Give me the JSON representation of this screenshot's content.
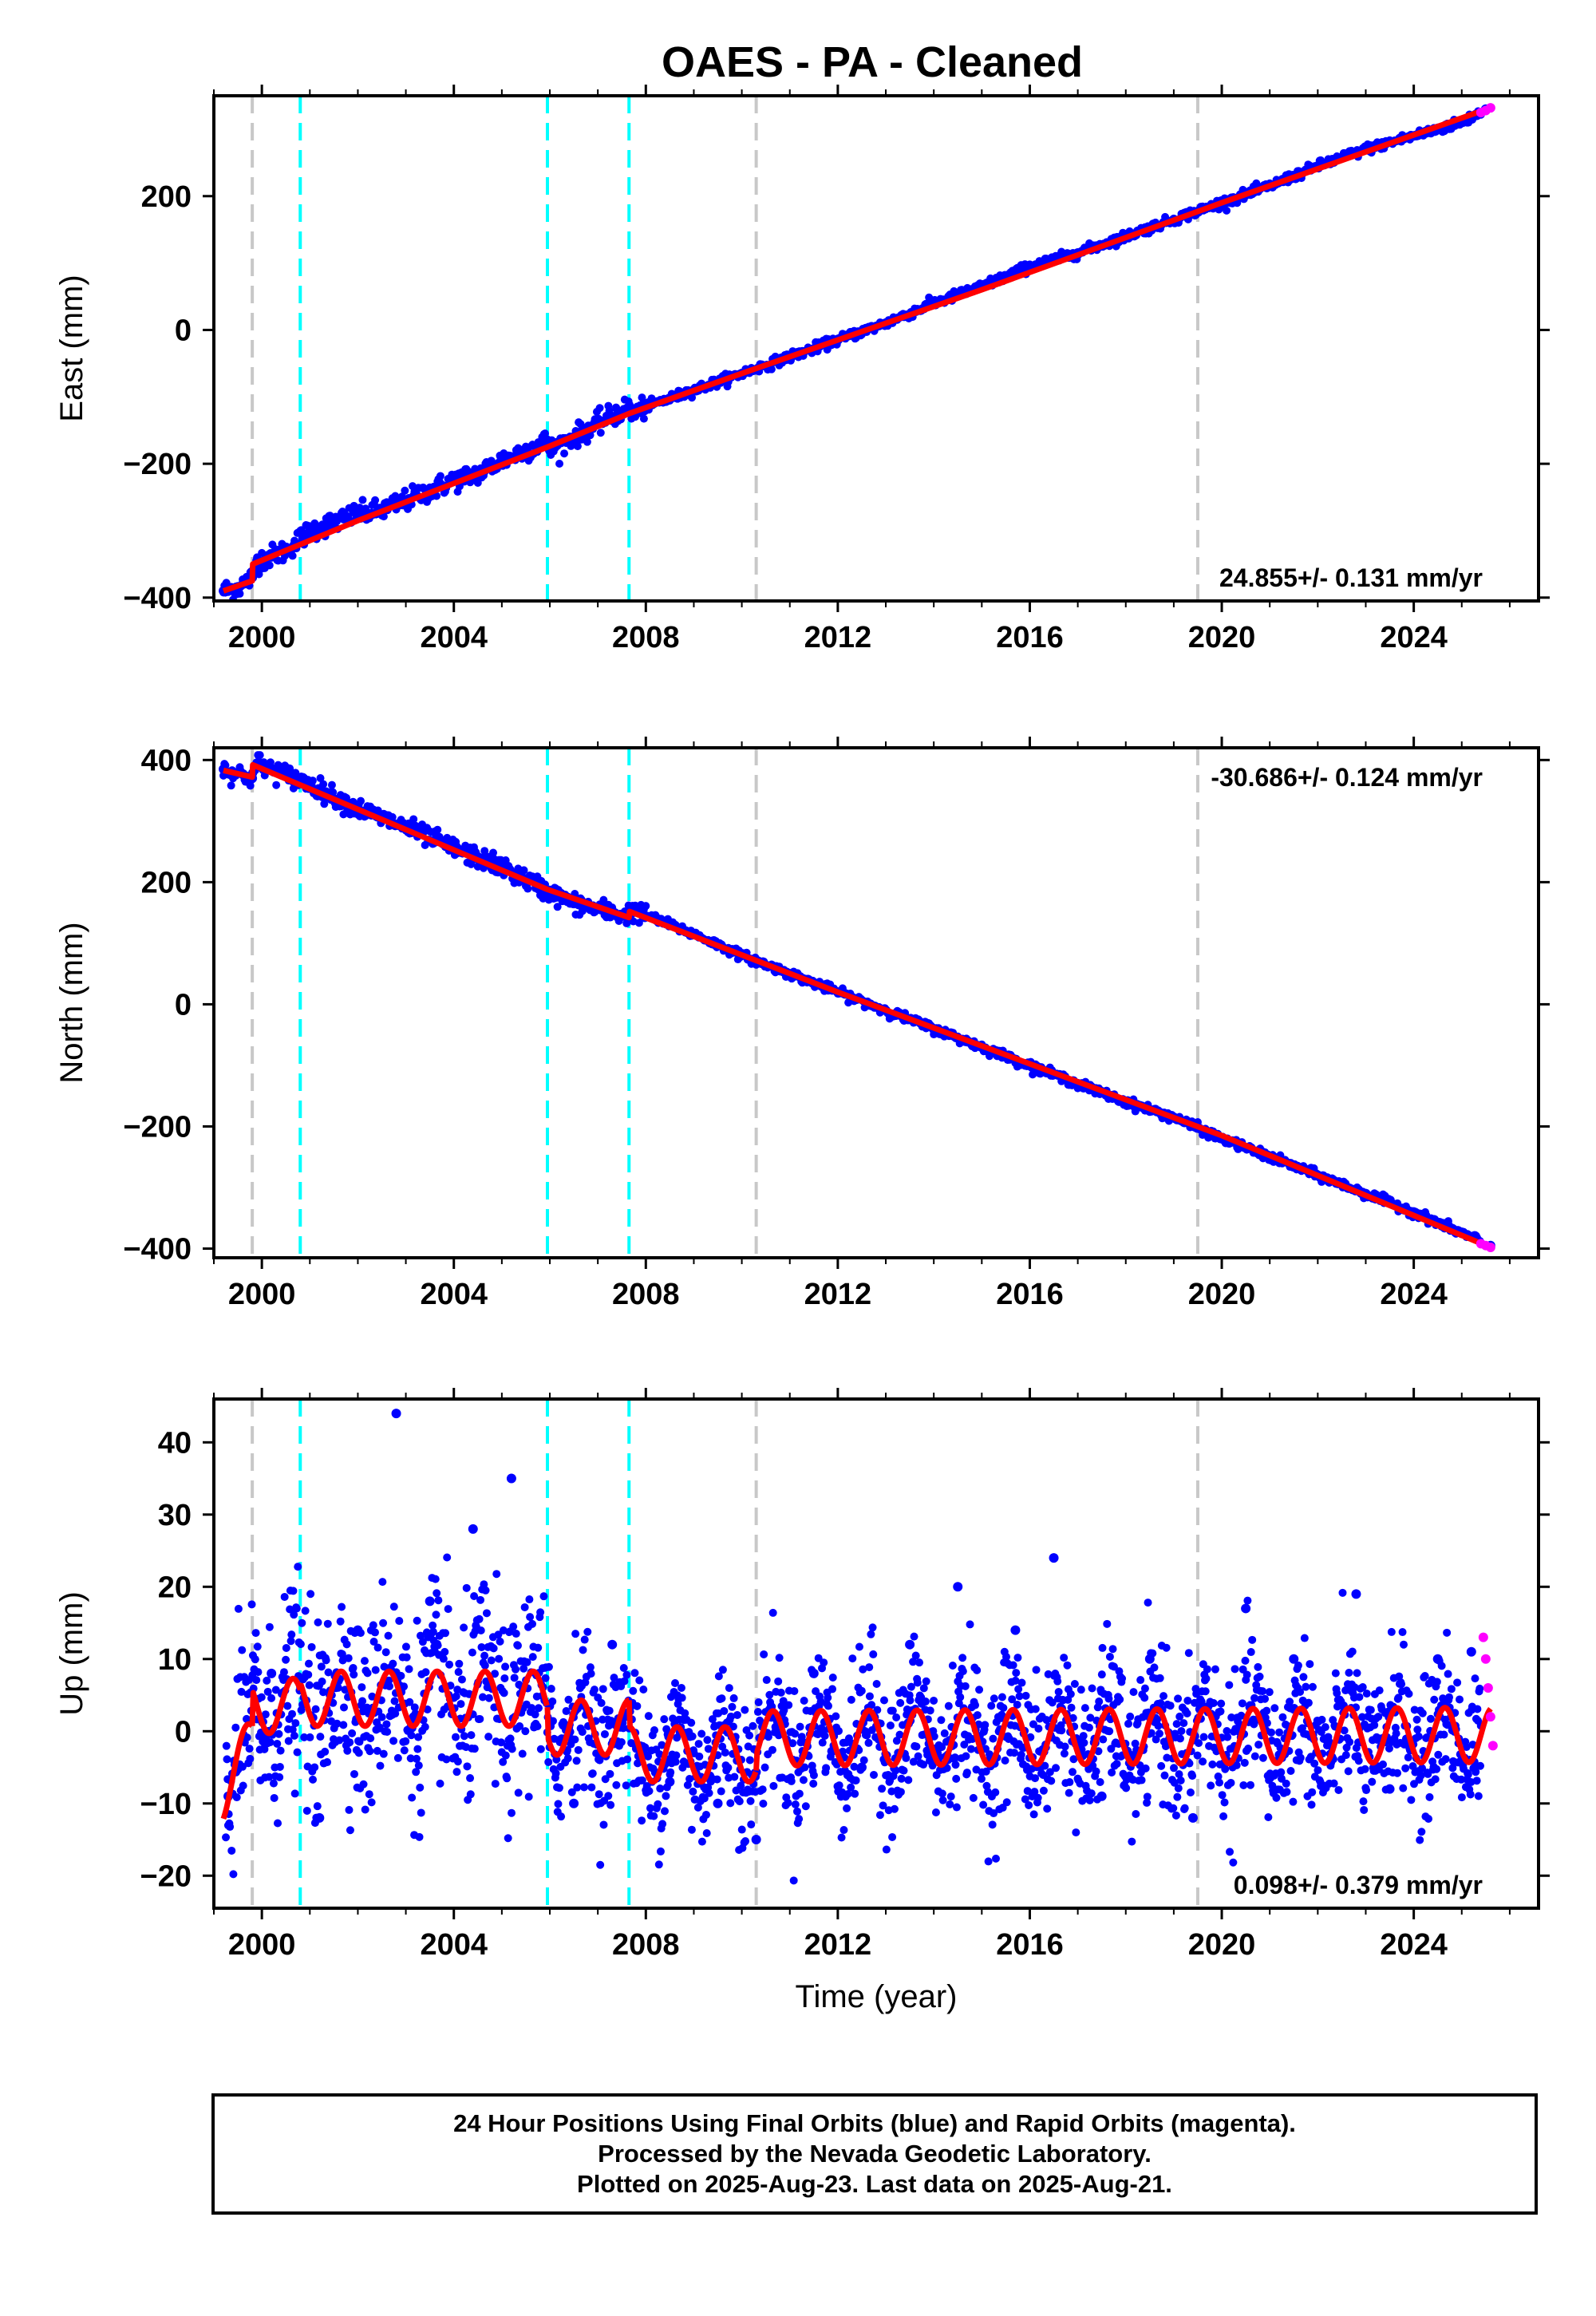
{
  "page": {
    "title": "OAES  - PA - Cleaned"
  },
  "colors": {
    "final_orbits": "#0000ff",
    "rapid_orbits": "#ff00ff",
    "model_fit": "#ff0000",
    "event_gray": "#c8c8c8",
    "event_cyan": "#00ffff"
  },
  "chart_data": [
    {
      "type": "scatter",
      "name": "east",
      "ylabel": "East (mm)",
      "xlabel": "",
      "xlim": [
        1999.0,
        2026.6
      ],
      "ylim": [
        -405,
        350
      ],
      "xticks": [
        "2000",
        "2004",
        "2008",
        "2012",
        "2016",
        "2020",
        "2024"
      ],
      "yticks": [
        "200",
        "0",
        "−200",
        "−400"
      ],
      "rate_label": "24.855+/- 0.131 mm/yr",
      "rate_position": "bottom-right",
      "event_lines_gray": [
        1999.8,
        2010.3,
        2019.5
      ],
      "event_lines_cyan": [
        2000.8,
        2005.95,
        2007.65
      ],
      "series": [
        {
          "name": "Final Orbits",
          "color": "#0000ff",
          "x": [
            1999.2,
            1999.5,
            1999.8,
            1999.9,
            2000.5,
            2001,
            2002,
            2002.5,
            2003,
            2003.5,
            2004,
            2004.5,
            2005,
            2005.5,
            2005.95,
            2006,
            2006.5,
            2007,
            2007.65,
            2007.7,
            2008,
            2009,
            2010,
            2011,
            2012,
            2013,
            2014,
            2015,
            2016,
            2017,
            2018,
            2019,
            2020,
            2021,
            2022,
            2023,
            2024,
            2025,
            2025.5
          ],
          "y": [
            -390,
            -385,
            -370,
            -345,
            -330,
            -300,
            -275,
            -270,
            -255,
            -240,
            -225,
            -215,
            -195,
            -180,
            -165,
            -180,
            -160,
            -140,
            -115,
            -125,
            -115,
            -90,
            -65,
            -40,
            -15,
            10,
            40,
            65,
            95,
            115,
            140,
            165,
            190,
            215,
            245,
            270,
            290,
            310,
            330
          ]
        },
        {
          "name": "Rapid Orbits",
          "color": "#ff00ff",
          "x": [
            2025.4,
            2025.5,
            2025.6
          ],
          "y": [
            325,
            328,
            332
          ]
        }
      ],
      "model": {
        "color": "#ff0000",
        "x": [
          1999.2,
          1999.8,
          1999.81,
          2002,
          2005.95,
          2007.65,
          2010,
          2015,
          2020,
          2025.6
        ],
        "y": [
          -390,
          -375,
          -350,
          -285,
          -175,
          -125,
          -65,
          60,
          190,
          332
        ]
      }
    },
    {
      "type": "scatter",
      "name": "north",
      "ylabel": "North (mm)",
      "xlabel": "",
      "xlim": [
        1999.0,
        2026.6
      ],
      "ylim": [
        -415,
        420
      ],
      "xticks": [
        "2000",
        "2004",
        "2008",
        "2012",
        "2016",
        "2020",
        "2024"
      ],
      "yticks": [
        "400",
        "200",
        "0",
        "−200",
        "−400"
      ],
      "rate_label": "-30.686+/- 0.124 mm/yr",
      "rate_position": "top-right",
      "event_lines_gray": [
        1999.8,
        2010.3,
        2019.5
      ],
      "event_lines_cyan": [
        2000.8,
        2005.95,
        2007.65
      ],
      "series": [
        {
          "name": "Final Orbits",
          "color": "#0000ff",
          "x": [
            1999.2,
            1999.8,
            1999.9,
            2001,
            2002,
            2003,
            2004,
            2005,
            2005.95,
            2006.5,
            2007.6,
            2007.7,
            2009,
            2010,
            2011,
            2012,
            2013,
            2014,
            2015,
            2016,
            2017,
            2018,
            2019,
            2020,
            2021,
            2022,
            2023,
            2024,
            2025,
            2025.6
          ],
          "y": [
            385,
            370,
            395,
            360,
            320,
            290,
            255,
            225,
            185,
            165,
            145,
            155,
            115,
            80,
            50,
            20,
            -10,
            -40,
            -70,
            -100,
            -130,
            -160,
            -185,
            -220,
            -250,
            -280,
            -310,
            -340,
            -375,
            -395
          ]
        },
        {
          "name": "Rapid Orbits",
          "color": "#ff00ff",
          "x": [
            2025.4,
            2025.5,
            2025.6
          ],
          "y": [
            -392,
            -395,
            -398
          ]
        }
      ],
      "model": {
        "color": "#ff0000",
        "x": [
          1999.2,
          1999.8,
          1999.81,
          2005.95,
          2007.65,
          2007.66,
          2012,
          2020,
          2025.6
        ],
        "y": [
          383,
          372,
          392,
          188,
          142,
          152,
          20,
          -215,
          -398
        ]
      }
    },
    {
      "type": "scatter",
      "name": "up",
      "ylabel": "Up (mm)",
      "xlabel": "Time (year)",
      "xlim": [
        1999.0,
        2026.6
      ],
      "ylim": [
        -24.5,
        46
      ],
      "xticks": [
        "2000",
        "2004",
        "2008",
        "2012",
        "2016",
        "2020",
        "2024"
      ],
      "yticks": [
        "40",
        "30",
        "20",
        "10",
        "0",
        "−10",
        "−20"
      ],
      "rate_label": "0.098+/- 0.379 mm/yr",
      "rate_position": "bottom-right",
      "event_lines_gray": [
        1999.8,
        2010.3,
        2019.5
      ],
      "event_lines_cyan": [
        2000.8,
        2005.95,
        2007.65
      ],
      "series": [
        {
          "name": "Final Orbits",
          "color": "#0000ff",
          "x": [
            1999.3,
            2000.2,
            2001.2,
            2002.0,
            2002.8,
            2003.5,
            2004.4,
            2005.2,
            2006.5,
            2007.3,
            2008.5,
            2009.5,
            2010.3,
            2011.5,
            2012.5,
            2013.5,
            2014.5,
            2015.7,
            2016.5,
            2017.5,
            2018.5,
            2019.4,
            2020.5,
            2021.5,
            2022.8,
            2023.5,
            2024.5,
            2025.2
          ],
          "y": [
            -9,
            8,
            -12,
            14,
            44,
            18,
            28,
            35,
            -10,
            12,
            -7,
            -10,
            -15,
            8,
            -5,
            12,
            20,
            14,
            24,
            -9,
            10,
            -12,
            17,
            10,
            19,
            -8,
            10,
            11
          ]
        },
        {
          "name": "Rapid Orbits",
          "color": "#ff00ff",
          "x": [
            2025.45,
            2025.5,
            2025.55,
            2025.6,
            2025.65
          ],
          "y": [
            13,
            10,
            6,
            2,
            -2
          ]
        }
      ],
      "model": {
        "color": "#ff0000",
        "annual_amplitude": 3.8,
        "segments": [
          {
            "x_start": 1999.2,
            "x_end": 1999.8,
            "start_value": -8.5,
            "end_value": -1.5
          },
          {
            "x_start": 1999.8,
            "x_end": 2000.8,
            "start_value": 3.5,
            "end_value": 3.5
          },
          {
            "x_start": 2000.8,
            "x_end": 2005.95,
            "start_value": 4.5,
            "end_value": 4.5
          },
          {
            "x_start": 2005.95,
            "x_end": 2007.65,
            "start_value": 0.5,
            "end_value": 0.5
          },
          {
            "x_start": 2007.65,
            "x_end": 2010.3,
            "start_value": -3.2,
            "end_value": -3.2
          },
          {
            "x_start": 2010.3,
            "x_end": 2025.6,
            "start_value": -1.0,
            "end_value": -0.5
          }
        ]
      }
    }
  ],
  "footer": {
    "line1": "24 Hour Positions Using Final Orbits (blue) and Rapid Orbits (magenta).",
    "line2": "Processed by the Nevada Geodetic Laboratory.",
    "line3": "Plotted on 2025-Aug-23. Last data on 2025-Aug-21."
  }
}
